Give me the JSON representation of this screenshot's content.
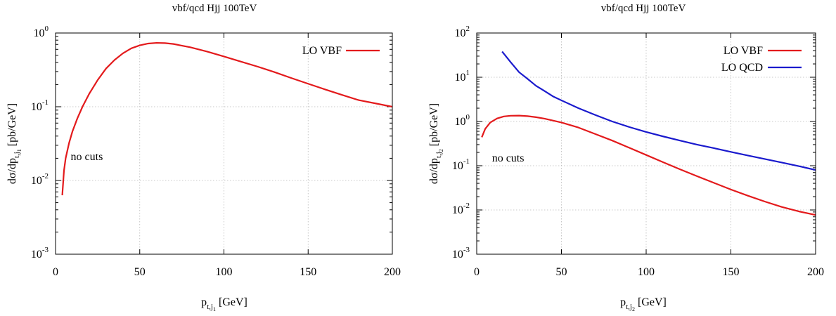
{
  "chart_data": [
    {
      "type": "line",
      "title": "vbf/qcd Hjj 100TeV",
      "xlabel": {
        "main": "p",
        "sub": "t,j",
        "subsub": "1",
        "unit": " [GeV]"
      },
      "ylabel": {
        "prefix": "dσ/dp",
        "sub": "t,j",
        "subsub": "1",
        "unit": " [pb/GeV]"
      },
      "xlim": [
        0,
        200
      ],
      "ylim": [
        0.001,
        1
      ],
      "yscale": "log",
      "grid": true,
      "legend_position": "top-right",
      "xticks": [
        0,
        50,
        100,
        150,
        200
      ],
      "yticks": [
        {
          "value": 0.001,
          "base": "10",
          "exp": "-3"
        },
        {
          "value": 0.01,
          "base": "10",
          "exp": "-2"
        },
        {
          "value": 0.1,
          "base": "10",
          "exp": "-1"
        },
        {
          "value": 1,
          "base": "10",
          "exp": "0"
        }
      ],
      "annotation": {
        "text": "no cuts",
        "x": 9,
        "y": 0.021
      },
      "series": [
        {
          "name": "LO VBF",
          "color": "#e31a1c",
          "x": [
            4,
            5,
            6,
            8,
            10,
            13,
            16,
            20,
            25,
            30,
            35,
            40,
            45,
            50,
            55,
            60,
            65,
            70,
            80,
            90,
            100,
            110,
            120,
            130,
            140,
            150,
            160,
            170,
            180,
            190,
            200
          ],
          "y": [
            0.0063,
            0.0135,
            0.02,
            0.032,
            0.046,
            0.07,
            0.1,
            0.15,
            0.23,
            0.33,
            0.43,
            0.53,
            0.62,
            0.68,
            0.72,
            0.735,
            0.73,
            0.71,
            0.64,
            0.56,
            0.48,
            0.41,
            0.35,
            0.295,
            0.245,
            0.205,
            0.172,
            0.145,
            0.123,
            0.111,
            0.1
          ]
        }
      ]
    },
    {
      "type": "line",
      "title": "vbf/qcd Hjj 100TeV",
      "xlabel": {
        "main": "p",
        "sub": "t,j",
        "subsub": "2",
        "unit": " [GeV]"
      },
      "ylabel": {
        "prefix": "dσ/dp",
        "sub": "t,j",
        "subsub": "2",
        "unit": " [pb/GeV]"
      },
      "xlim": [
        0,
        200
      ],
      "ylim": [
        0.001,
        100
      ],
      "yscale": "log",
      "grid": true,
      "legend_position": "top-right",
      "xticks": [
        0,
        50,
        100,
        150,
        200
      ],
      "yticks": [
        {
          "value": 0.001,
          "base": "10",
          "exp": "-3"
        },
        {
          "value": 0.01,
          "base": "10",
          "exp": "-2"
        },
        {
          "value": 0.1,
          "base": "10",
          "exp": "-1"
        },
        {
          "value": 1,
          "base": "10",
          "exp": "0"
        },
        {
          "value": 10,
          "base": "10",
          "exp": "1"
        },
        {
          "value": 100,
          "base": "10",
          "exp": "2"
        }
      ],
      "annotation": {
        "text": "no cuts",
        "x": 9,
        "y": 0.15
      },
      "series": [
        {
          "name": "LO VBF",
          "color": "#e31a1c",
          "x": [
            3,
            5,
            8,
            12,
            16,
            20,
            25,
            30,
            35,
            40,
            50,
            60,
            70,
            80,
            90,
            100,
            110,
            120,
            130,
            140,
            150,
            160,
            170,
            180,
            190,
            200
          ],
          "y": [
            0.44,
            0.68,
            0.95,
            1.17,
            1.3,
            1.35,
            1.36,
            1.32,
            1.25,
            1.16,
            0.95,
            0.73,
            0.52,
            0.37,
            0.255,
            0.175,
            0.12,
            0.083,
            0.058,
            0.041,
            0.029,
            0.021,
            0.0155,
            0.0117,
            0.0093,
            0.0077
          ]
        },
        {
          "name": "LO QCD",
          "color": "#1a1acd",
          "x": [
            15,
            20,
            25,
            30,
            35,
            40,
            45,
            50,
            60,
            70,
            80,
            90,
            100,
            110,
            120,
            130,
            140,
            150,
            160,
            170,
            180,
            190,
            200
          ],
          "y": [
            38,
            22,
            13,
            9.2,
            6.4,
            4.9,
            3.7,
            3.0,
            2.0,
            1.4,
            1.0,
            0.75,
            0.58,
            0.46,
            0.37,
            0.3,
            0.25,
            0.205,
            0.17,
            0.142,
            0.118,
            0.098,
            0.08
          ]
        }
      ]
    }
  ]
}
